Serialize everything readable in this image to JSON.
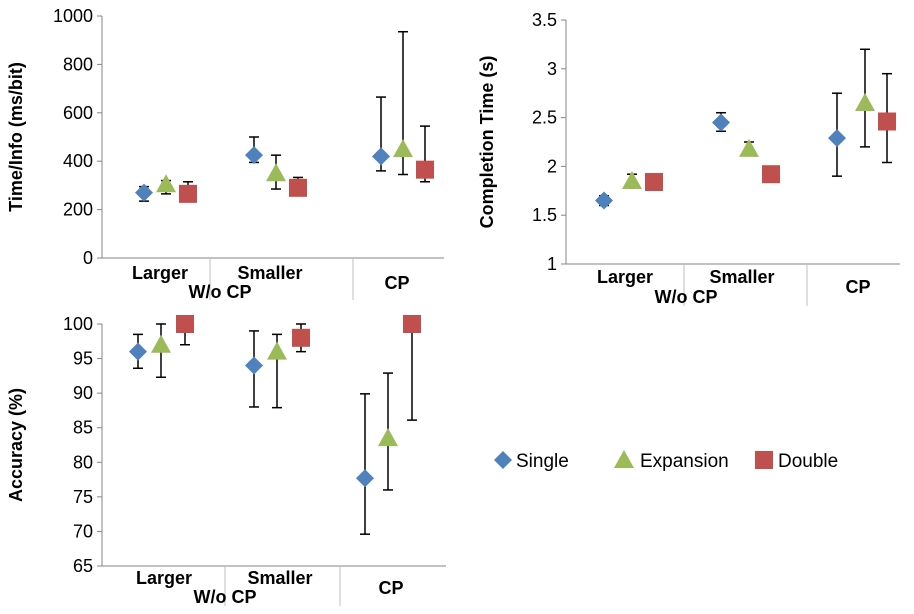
{
  "legend": {
    "items": [
      {
        "label": "Single",
        "shape": "diamond",
        "color": "#4F81BD"
      },
      {
        "label": "Expansion",
        "shape": "triangle",
        "color": "#9BBB59"
      },
      {
        "label": "Double",
        "shape": "square",
        "color": "#C0504D"
      }
    ]
  },
  "chart_data": [
    {
      "id": "time-info",
      "type": "scatter",
      "ylabel": "Time/Info (ms/bit)",
      "ylim": [
        0,
        1000
      ],
      "yticks": [
        0,
        200,
        400,
        600,
        800,
        1000
      ],
      "categories": [
        "Larger",
        "Smaller",
        "CP"
      ],
      "group_label": "W/o CP",
      "series": [
        {
          "name": "Single",
          "values": [
            270,
            425,
            420
          ],
          "err_low": [
            235,
            395,
            360
          ],
          "err_high": [
            295,
            500,
            665
          ]
        },
        {
          "name": "Expansion",
          "values": [
            305,
            350,
            450
          ],
          "err_low": [
            265,
            285,
            345
          ],
          "err_high": [
            320,
            425,
            935
          ]
        },
        {
          "name": "Double",
          "values": [
            265,
            290,
            365
          ],
          "err_low": [
            265,
            290,
            315
          ],
          "err_high": [
            315,
            333,
            545
          ]
        }
      ]
    },
    {
      "id": "completion-time",
      "type": "scatter",
      "ylabel": "Completion Time (s)",
      "ylim": [
        1,
        3.5
      ],
      "yticks": [
        1,
        1.5,
        2,
        2.5,
        3,
        3.5
      ],
      "categories": [
        "Larger",
        "Smaller",
        "CP"
      ],
      "group_label": "W/o CP",
      "series": [
        {
          "name": "Single",
          "values": [
            1.65,
            2.45,
            2.29
          ],
          "err_low": [
            1.6,
            2.36,
            1.9
          ],
          "err_high": [
            1.7,
            2.55,
            2.75
          ]
        },
        {
          "name": "Expansion",
          "values": [
            1.85,
            2.18,
            2.65
          ],
          "err_low": [
            1.82,
            2.13,
            2.2
          ],
          "err_high": [
            1.92,
            2.25,
            3.2
          ]
        },
        {
          "name": "Double",
          "values": [
            1.84,
            1.92,
            2.46
          ],
          "err_low": [
            1.84,
            1.92,
            2.04
          ],
          "err_high": [
            1.84,
            1.92,
            2.95
          ]
        }
      ]
    },
    {
      "id": "accuracy",
      "type": "scatter",
      "ylabel": "Accuracy (%)",
      "ylim": [
        65,
        100
      ],
      "yticks": [
        65,
        70,
        75,
        80,
        85,
        90,
        95,
        100
      ],
      "categories": [
        "Larger",
        "Smaller",
        "CP"
      ],
      "group_label": "W/o CP",
      "series": [
        {
          "name": "Single",
          "values": [
            96,
            94,
            77.7
          ],
          "err_low": [
            93.6,
            88,
            69.6
          ],
          "err_high": [
            98.5,
            99,
            89.9
          ]
        },
        {
          "name": "Expansion",
          "values": [
            97,
            96,
            83.5
          ],
          "err_low": [
            92.3,
            87.9,
            76
          ],
          "err_high": [
            100,
            98.5,
            92.9
          ]
        },
        {
          "name": "Double",
          "values": [
            100,
            98,
            100
          ],
          "err_low": [
            97,
            96,
            86.1
          ],
          "err_high": [
            100,
            100,
            100
          ]
        }
      ]
    }
  ]
}
